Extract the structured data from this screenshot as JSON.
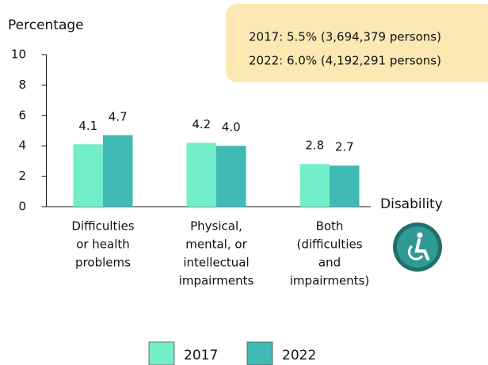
{
  "chart_data": {
    "type": "bar",
    "y_label": "Percentage",
    "x_label": "Disability",
    "annotations": [
      "2017: 5.5% (3,694,379 persons)",
      "2022: 6.0% (4,192,291 persons)"
    ],
    "categories": [
      [
        "Difficulties",
        "or health",
        "problems"
      ],
      [
        "Physical,",
        "mental, or",
        "intellectual",
        "impairments"
      ],
      [
        "Both",
        "(difficulties",
        "and",
        "impairments)"
      ]
    ],
    "series": [
      {
        "name": "2017",
        "color": "#72eec9",
        "values": [
          4.1,
          4.2,
          2.8
        ],
        "value_labels": [
          "4.1",
          "4.2",
          "2.8"
        ]
      },
      {
        "name": "2022",
        "color": "#3fbab5",
        "values": [
          4.7,
          4,
          2.7
        ],
        "value_labels": [
          "4.7",
          "4.0",
          "2.7"
        ]
      }
    ],
    "ylim": [
      0,
      10
    ],
    "yticks": [
      0,
      2,
      4,
      6,
      8,
      10
    ]
  }
}
